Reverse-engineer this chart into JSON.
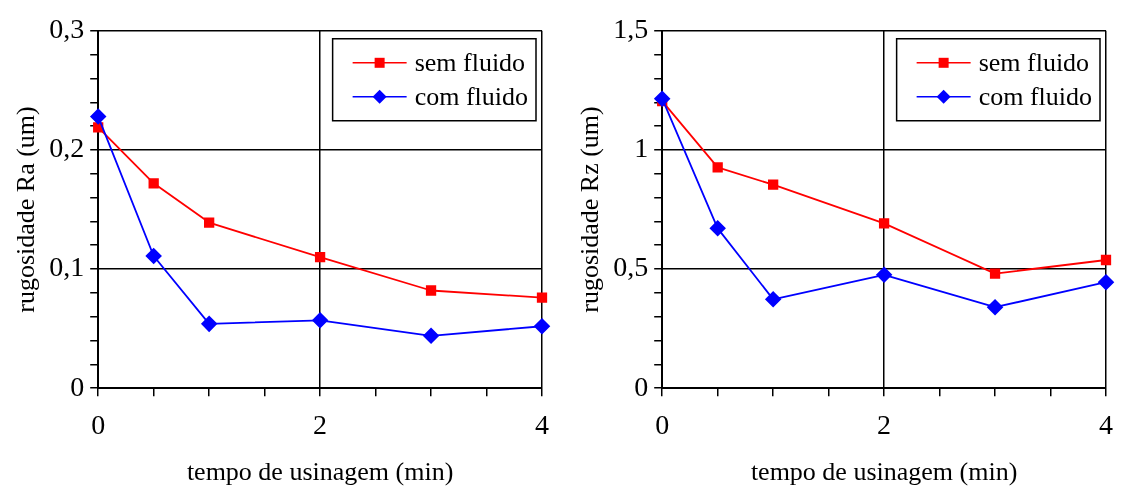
{
  "chart_data": [
    {
      "type": "line",
      "xlabel": "tempo de usinagem (min)",
      "ylabel": "rugosidade Ra (um)",
      "x": [
        0,
        0.5,
        1,
        2,
        3,
        4
      ],
      "series": [
        {
          "name": "sem fluido",
          "color": "#ff0000",
          "marker": "square",
          "values": [
            0.219,
            0.172,
            0.139,
            0.11,
            0.082,
            0.076
          ]
        },
        {
          "name": "com fluido",
          "color": "#0000ff",
          "marker": "diamond",
          "values": [
            0.228,
            0.111,
            0.054,
            0.057,
            0.044,
            0.052
          ]
        }
      ],
      "xlim": [
        0,
        4
      ],
      "xticks": [
        0,
        {
          "value": 0.5,
          "label": null
        },
        {
          "value": 1,
          "label": null
        },
        {
          "value": 1.5,
          "label": null
        },
        2,
        {
          "value": 2.5,
          "label": null
        },
        {
          "value": 3,
          "label": null
        },
        {
          "value": 3.5,
          "label": null
        },
        4
      ],
      "ylim": [
        0,
        0.3
      ],
      "yticks": [
        {
          "value": 0,
          "label": "0"
        },
        {
          "value": 0.02,
          "label": null
        },
        {
          "value": 0.04,
          "label": null
        },
        {
          "value": 0.06,
          "label": null
        },
        {
          "value": 0.08,
          "label": null
        },
        {
          "value": 0.1,
          "label": "0,1"
        },
        {
          "value": 0.12,
          "label": null
        },
        {
          "value": 0.14,
          "label": null
        },
        {
          "value": 0.16,
          "label": null
        },
        {
          "value": 0.18,
          "label": null
        },
        {
          "value": 0.2,
          "label": "0,2"
        },
        {
          "value": 0.22,
          "label": null
        },
        {
          "value": 0.24,
          "label": null
        },
        {
          "value": 0.26,
          "label": null
        },
        {
          "value": 0.28,
          "label": null
        },
        {
          "value": 0.3,
          "label": "0,3"
        }
      ],
      "grid": true,
      "legend": "top right",
      "line_style": "solid"
    },
    {
      "type": "line",
      "xlabel": "tempo de usinagem (min)",
      "ylabel": "rugosidade Rz (um)",
      "x": [
        0,
        0.5,
        1,
        2,
        3,
        4
      ],
      "series": [
        {
          "name": "sem fluido",
          "color": "#ff0000",
          "marker": "square",
          "values": [
            1.205,
            0.927,
            0.854,
            0.692,
            0.481,
            0.538
          ]
        },
        {
          "name": "com fluido",
          "color": "#0000ff",
          "marker": "diamond",
          "values": [
            1.215,
            0.671,
            0.373,
            0.476,
            0.34,
            0.445
          ]
        }
      ],
      "xlim": [
        0,
        4
      ],
      "xticks": [
        0,
        {
          "value": 0.5,
          "label": null
        },
        {
          "value": 1,
          "label": null
        },
        {
          "value": 1.5,
          "label": null
        },
        2,
        {
          "value": 2.5,
          "label": null
        },
        {
          "value": 3,
          "label": null
        },
        {
          "value": 3.5,
          "label": null
        },
        4
      ],
      "ylim": [
        0,
        1.5
      ],
      "yticks": [
        0,
        {
          "value": 0.1,
          "label": null
        },
        {
          "value": 0.2,
          "label": null
        },
        {
          "value": 0.3,
          "label": null
        },
        {
          "value": 0.4,
          "label": null
        },
        {
          "value": 0.5,
          "label": "0,5"
        },
        {
          "value": 0.6,
          "label": null
        },
        {
          "value": 0.7,
          "label": null
        },
        {
          "value": 0.8,
          "label": null
        },
        {
          "value": 0.9,
          "label": null
        },
        1,
        {
          "value": 1.1,
          "label": null
        },
        {
          "value": 1.2,
          "label": null
        },
        {
          "value": 1.3,
          "label": null
        },
        {
          "value": 1.4,
          "label": null
        },
        {
          "value": 1.5,
          "label": "1,5"
        }
      ],
      "grid": true,
      "legend": "top right",
      "line_style": "solid"
    }
  ]
}
